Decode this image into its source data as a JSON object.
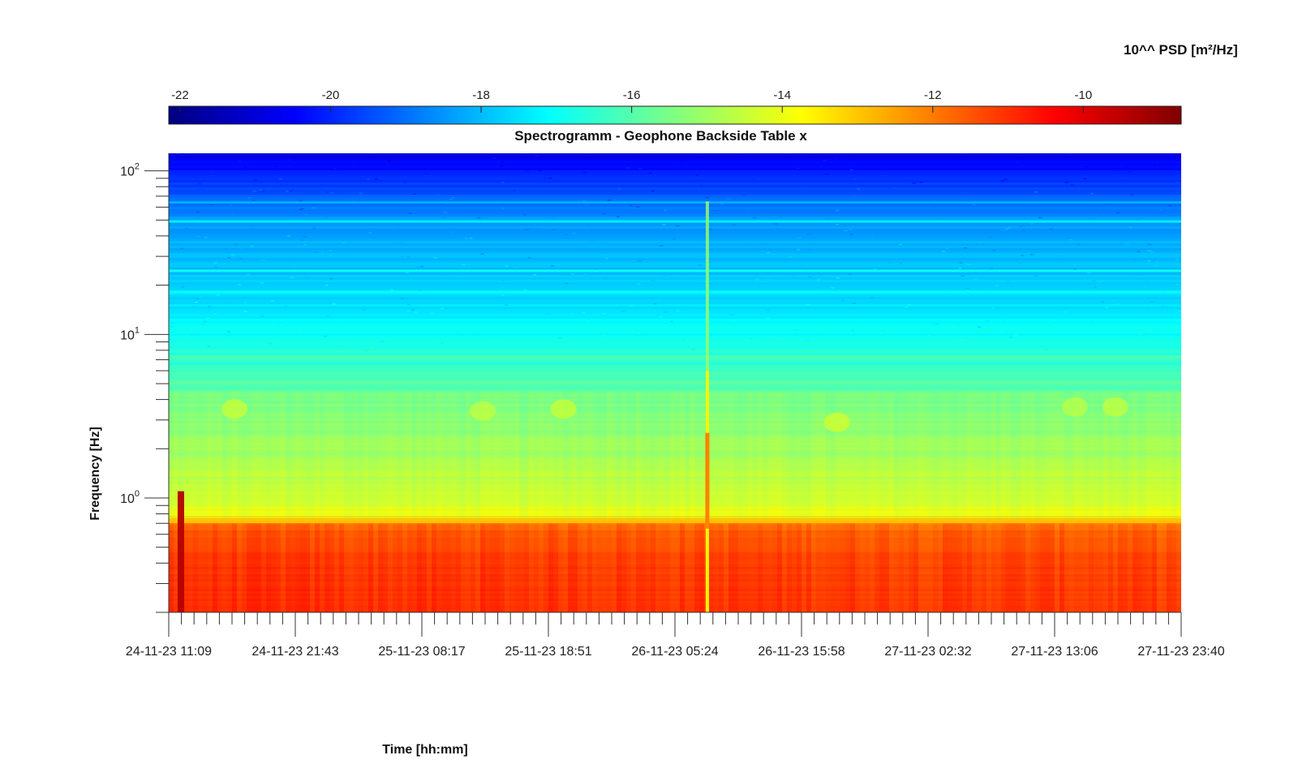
{
  "chart_data": {
    "type": "heatmap",
    "title": "Spectrogramm - Geophone Backside Table x",
    "xlabel": "Time [hh:mm]",
    "ylabel": "Frequency [Hz]",
    "colorbar": {
      "label": "10^^ PSD [m²/Hz]",
      "ticks": [
        -22,
        -20,
        -18,
        -16,
        -14,
        -12,
        -10
      ],
      "range": [
        -22.15,
        -8.7
      ],
      "colormap": "jet",
      "placement": "top"
    },
    "x_ticks": [
      "24-11-23 11:09",
      "24-11-23 21:43",
      "25-11-23 08:17",
      "25-11-23 18:51",
      "26-11-23 05:24",
      "26-11-23 15:58",
      "27-11-23 02:32",
      "27-11-23 13:06",
      "27-11-23 23:40"
    ],
    "x_minor_ticks_between_labels": 9,
    "y_scale": "log",
    "y_range": [
      0.2,
      128
    ],
    "y_ticks": [
      {
        "base": "10",
        "exp": "0",
        "value": 1
      },
      {
        "base": "10",
        "exp": "1",
        "value": 10
      },
      {
        "base": "10",
        "exp": "2",
        "value": 100
      }
    ],
    "grid": false,
    "psd_profile": [
      {
        "freq": 0.2,
        "log_psd": -10.7
      },
      {
        "freq": 0.4,
        "log_psd": -11.0
      },
      {
        "freq": 0.6,
        "log_psd": -11.7
      },
      {
        "freq": 0.68,
        "log_psd": -12.4
      },
      {
        "freq": 0.8,
        "log_psd": -13.8
      },
      {
        "freq": 1.0,
        "log_psd": -14.2
      },
      {
        "freq": 2.0,
        "log_psd": -15.1
      },
      {
        "freq": 4.0,
        "log_psd": -15.8
      },
      {
        "freq": 8.0,
        "log_psd": -16.7
      },
      {
        "freq": 12.0,
        "log_psd": -17.2
      },
      {
        "freq": 25.0,
        "log_psd": -17.9
      },
      {
        "freq": 50.0,
        "log_psd": -18.5
      },
      {
        "freq": 80.0,
        "log_psd": -19.6
      },
      {
        "freq": 128.0,
        "log_psd": -20.9
      }
    ],
    "spectral_lines_hz": [
      {
        "freq": 24.5,
        "log_psd": -16.9
      },
      {
        "freq": 18.2,
        "log_psd": -17.0
      },
      {
        "freq": 49.0,
        "log_psd": -17.2
      },
      {
        "freq": 64.0,
        "log_psd": -18.0
      },
      {
        "freq": 7.3,
        "log_psd": -16.0
      }
    ],
    "events": [
      {
        "label": "broadband transient",
        "time_fraction": 0.532,
        "f_top": 65,
        "log_psd": -12.0
      },
      {
        "label": "low-frequency burst",
        "time_fraction": 0.012,
        "f_top": 1.1,
        "log_psd": -9.4
      }
    ],
    "noise_patches": [
      {
        "time_fraction": 0.065,
        "freq": 3.5,
        "log_psd": -14.4
      },
      {
        "time_fraction": 0.31,
        "freq": 3.4,
        "log_psd": -14.5
      },
      {
        "time_fraction": 0.39,
        "freq": 3.5,
        "log_psd": -14.4
      },
      {
        "time_fraction": 0.66,
        "freq": 2.9,
        "log_psd": -14.3
      },
      {
        "time_fraction": 0.935,
        "freq": 3.6,
        "log_psd": -14.5
      },
      {
        "time_fraction": 0.895,
        "freq": 3.6,
        "log_psd": -14.6
      }
    ]
  }
}
